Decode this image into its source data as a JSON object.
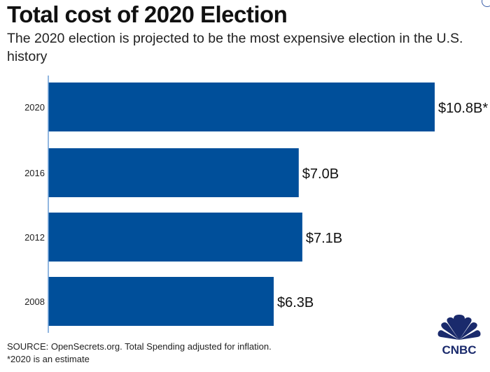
{
  "chart_data": {
    "type": "bar",
    "orientation": "horizontal",
    "title": "Total cost of 2020 Election",
    "subtitle": "The 2020 election is projected to be the most expensive election in the U.S. history",
    "categories": [
      "2020",
      "2016",
      "2012",
      "2008"
    ],
    "values": [
      10.8,
      7.0,
      7.1,
      6.3
    ],
    "data_labels": [
      "$10.8B*",
      "$7.0B",
      "$7.1B",
      "$6.3B"
    ],
    "unit": "billion USD",
    "xlim": [
      0,
      10.8
    ],
    "grid": false,
    "bar_color": "#004f9a",
    "axis_color": "#6f9fd6"
  },
  "footer": {
    "source": "SOURCE: OpenSecrets.org. Total Spending adjusted for inflation.",
    "note": "*2020 is an estimate"
  },
  "logo": {
    "text": "CNBC",
    "color": "#1a2a6c"
  }
}
